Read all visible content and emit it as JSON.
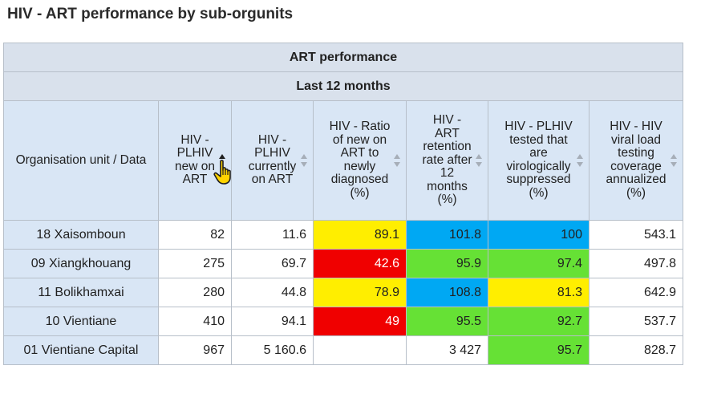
{
  "title": "HIV - ART performance by sub-orgunits",
  "table": {
    "header1": "ART performance",
    "header2": "Last 12 months",
    "corner": "Organisation unit / Data",
    "columns": [
      {
        "label": [
          "HIV -",
          "PLHIV",
          "new on",
          "ART"
        ],
        "sort": "asc"
      },
      {
        "label": [
          "HIV -",
          "PLHIV",
          "currently",
          "on ART"
        ],
        "sort": "none"
      },
      {
        "label": [
          "HIV - Ratio",
          "of new on",
          "ART to",
          "newly",
          "diagnosed",
          "(%)"
        ],
        "sort": "none"
      },
      {
        "label": [
          "HIV -",
          "ART",
          "retention",
          "rate after",
          "12",
          "months",
          "(%)"
        ],
        "sort": "none"
      },
      {
        "label": [
          "HIV - PLHIV",
          "tested that",
          "are",
          "virologically",
          "suppressed",
          "(%)"
        ],
        "sort": "none"
      },
      {
        "label": [
          "HIV - HIV",
          "viral load",
          "testing",
          "coverage",
          "annualized",
          "(%)"
        ],
        "sort": "none"
      }
    ],
    "rows": [
      {
        "name": "18 Xaisomboun",
        "values": [
          "82",
          "11.6",
          "89.1",
          "101.8",
          "100",
          "543.1"
        ],
        "colors": [
          "",
          "",
          "#ffee00",
          "#00a8f3",
          "#00a8f3",
          ""
        ]
      },
      {
        "name": "09 Xiangkhouang",
        "values": [
          "275",
          "69.7",
          "42.6",
          "95.9",
          "97.4",
          "497.8"
        ],
        "colors": [
          "",
          "",
          "#f00000",
          "#66e135",
          "#66e135",
          ""
        ]
      },
      {
        "name": "11 Bolikhamxai",
        "values": [
          "280",
          "44.8",
          "78.9",
          "108.8",
          "81.3",
          "642.9"
        ],
        "colors": [
          "",
          "",
          "#ffee00",
          "#00a8f3",
          "#ffee00",
          ""
        ]
      },
      {
        "name": "10 Vientiane",
        "values": [
          "410",
          "94.1",
          "49",
          "95.5",
          "92.7",
          "537.7"
        ],
        "colors": [
          "",
          "",
          "#f00000",
          "#66e135",
          "#66e135",
          ""
        ]
      },
      {
        "name": "01 Vientiane Capital",
        "values": [
          "967",
          "5 160.6",
          "",
          "3 427",
          "95.7",
          "828.7"
        ],
        "colors": [
          "",
          "",
          "",
          "",
          "#66e135",
          ""
        ]
      }
    ]
  },
  "cursor_icon": "hand-pointer-icon"
}
